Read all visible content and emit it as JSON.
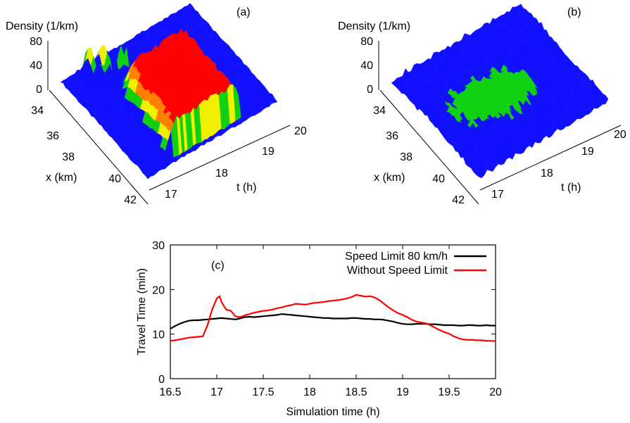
{
  "panels": [
    {
      "label": "(a)",
      "type": "surface3d",
      "zlabel": "Density (1/km)",
      "xlabel": "x (km)",
      "tlabel": "t (h)",
      "zticks": [
        "0",
        "40",
        "80"
      ],
      "xticks": [
        "34",
        "36",
        "38",
        "40",
        "42"
      ],
      "tticks": [
        "17",
        "18",
        "19",
        "20"
      ],
      "colors": [
        "#1010ff",
        "#10d010",
        "#f0f000",
        "#ff8000",
        "#ff0000"
      ]
    },
    {
      "label": "(b)",
      "type": "surface3d",
      "zlabel": "Density (1/km)",
      "xlabel": "x (km)",
      "tlabel": "t (h)",
      "zticks": [
        "0",
        "40",
        "80"
      ],
      "xticks": [
        "34",
        "36",
        "38",
        "40",
        "42"
      ],
      "tticks": [
        "17",
        "18",
        "19",
        "20"
      ],
      "colors": [
        "#1010ff",
        "#10d010",
        "#d8f000"
      ]
    }
  ],
  "chart_data": {
    "type": "line",
    "label": "(c)",
    "xlabel": "Simulation time (h)",
    "ylabel": "Travel Time (min)",
    "xlim": [
      16.5,
      20
    ],
    "ylim": [
      0,
      30
    ],
    "xticks": [
      "16.5",
      "17",
      "17.5",
      "18",
      "18.5",
      "19",
      "19.5",
      "20"
    ],
    "yticks": [
      "0",
      "10",
      "20",
      "30"
    ],
    "legend_position": "top-right",
    "series": [
      {
        "name": "Speed Limit 80 km/h",
        "color": "#000000",
        "x": [
          16.5,
          16.55,
          16.6,
          16.65,
          16.7,
          16.75,
          16.8,
          16.85,
          16.9,
          16.95,
          17.0,
          17.05,
          17.1,
          17.15,
          17.2,
          17.25,
          17.3,
          17.35,
          17.4,
          17.45,
          17.5,
          17.55,
          17.6,
          17.65,
          17.7,
          17.75,
          17.8,
          17.85,
          17.9,
          17.95,
          18.0,
          18.05,
          18.1,
          18.15,
          18.2,
          18.25,
          18.3,
          18.35,
          18.4,
          18.45,
          18.5,
          18.55,
          18.6,
          18.65,
          18.7,
          18.75,
          18.8,
          18.85,
          18.9,
          18.95,
          19.0,
          19.05,
          19.1,
          19.15,
          19.2,
          19.25,
          19.3,
          19.35,
          19.4,
          19.45,
          19.5,
          19.55,
          19.6,
          19.65,
          19.7,
          19.75,
          19.8,
          19.85,
          19.9,
          19.95,
          20.0
        ],
        "values": [
          11.2,
          11.8,
          12.3,
          12.7,
          13.0,
          13.1,
          13.1,
          13.2,
          13.3,
          13.4,
          13.5,
          13.6,
          13.5,
          13.4,
          13.3,
          13.5,
          13.8,
          13.9,
          13.8,
          13.9,
          14.0,
          14.1,
          14.2,
          14.3,
          14.5,
          14.4,
          14.3,
          14.2,
          14.1,
          14.0,
          13.9,
          13.8,
          13.7,
          13.6,
          13.6,
          13.5,
          13.5,
          13.5,
          13.5,
          13.6,
          13.6,
          13.5,
          13.4,
          13.4,
          13.3,
          13.3,
          13.2,
          13.0,
          12.8,
          12.5,
          12.3,
          12.2,
          12.2,
          12.3,
          12.3,
          12.3,
          12.2,
          12.2,
          12.1,
          12.0,
          12.0,
          12.0,
          11.9,
          11.9,
          12.0,
          12.0,
          11.9,
          11.9,
          12.0,
          11.9,
          11.9
        ]
      },
      {
        "name": "Without Speed Limit",
        "color": "#ff0000",
        "x": [
          16.5,
          16.55,
          16.6,
          16.65,
          16.7,
          16.75,
          16.8,
          16.85,
          16.9,
          16.95,
          17.0,
          17.03,
          17.05,
          17.1,
          17.15,
          17.2,
          17.25,
          17.3,
          17.35,
          17.4,
          17.45,
          17.5,
          17.55,
          17.6,
          17.65,
          17.7,
          17.75,
          17.8,
          17.85,
          17.9,
          17.95,
          18.0,
          18.05,
          18.1,
          18.15,
          18.2,
          18.25,
          18.3,
          18.35,
          18.4,
          18.45,
          18.5,
          18.55,
          18.6,
          18.65,
          18.7,
          18.75,
          18.8,
          18.85,
          18.9,
          18.95,
          19.0,
          19.05,
          19.1,
          19.15,
          19.2,
          19.25,
          19.3,
          19.35,
          19.4,
          19.45,
          19.5,
          19.55,
          19.6,
          19.65,
          19.7,
          19.75,
          19.8,
          19.85,
          19.9,
          19.95,
          20.0
        ],
        "values": [
          8.5,
          8.6,
          8.8,
          9.0,
          9.2,
          9.3,
          9.4,
          9.5,
          12.0,
          15.5,
          18.0,
          18.5,
          17.2,
          15.5,
          15.2,
          14.0,
          13.8,
          14.2,
          14.5,
          14.8,
          15.0,
          15.2,
          15.3,
          15.5,
          15.8,
          16.0,
          16.3,
          16.5,
          16.8,
          16.7,
          16.6,
          16.8,
          17.0,
          17.1,
          17.2,
          17.4,
          17.5,
          17.6,
          17.8,
          18.0,
          18.3,
          18.8,
          18.6,
          18.4,
          18.5,
          18.2,
          17.6,
          16.8,
          16.0,
          15.3,
          14.7,
          14.3,
          13.8,
          13.2,
          12.8,
          12.6,
          12.4,
          12.0,
          11.4,
          10.9,
          10.4,
          10.1,
          9.5,
          9.1,
          8.8,
          8.7,
          8.7,
          8.6,
          8.6,
          8.5,
          8.5,
          8.4
        ]
      }
    ]
  }
}
